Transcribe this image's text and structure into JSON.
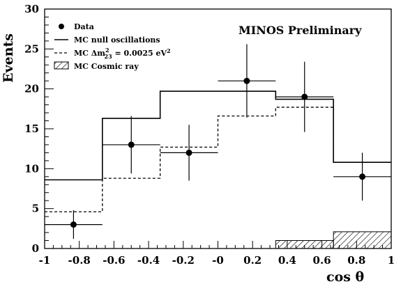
{
  "chart_data": {
    "type": "histogram",
    "title": "",
    "annotation": "MINOS Preliminary",
    "xlabel": "cos θ",
    "ylabel": "Events",
    "xlim": [
      -1,
      1
    ],
    "ylim": [
      0,
      30
    ],
    "x_ticks": [
      "-1",
      "-0.8",
      "-0.6",
      "-0.4",
      "-0.2",
      "-0",
      "0.2",
      "0.4",
      "0.6",
      "0.8",
      "1"
    ],
    "x_tick_values": [
      -1,
      -0.8,
      -0.6,
      -0.4,
      -0.2,
      0,
      0.2,
      0.4,
      0.6,
      0.8,
      1
    ],
    "y_ticks": [
      "0",
      "5",
      "10",
      "15",
      "20",
      "25",
      "30"
    ],
    "y_tick_values": [
      0,
      5,
      10,
      15,
      20,
      25,
      30
    ],
    "bin_edges": [
      -1,
      -0.6667,
      -0.3333,
      0,
      0.3333,
      0.6667,
      1
    ],
    "series": [
      {
        "name": "Data",
        "style": "points",
        "x": [
          -0.8333,
          -0.5,
          -0.1667,
          0.1667,
          0.5,
          0.8333
        ],
        "y": [
          3,
          13,
          12,
          21,
          19,
          9
        ],
        "yerr_low": [
          1.8,
          3.6,
          3.5,
          4.6,
          4.4,
          3.0
        ],
        "yerr_high": [
          1.8,
          3.6,
          3.5,
          4.6,
          4.4,
          3.0
        ]
      },
      {
        "name": "MC null oscillations",
        "style": "solid-step",
        "values": [
          8.6,
          16.3,
          19.7,
          19.7,
          18.7,
          10.8
        ]
      },
      {
        "name": "MC Δm²₂₃ = 0.0025 eV²",
        "style": "dashed-step",
        "values": [
          4.6,
          8.8,
          12.7,
          16.6,
          17.7,
          10.8
        ]
      },
      {
        "name": "MC Cosmic ray",
        "style": "hatched",
        "values": [
          0,
          0,
          0,
          0,
          1.0,
          2.1
        ]
      }
    ],
    "legend": {
      "placement": "top-left",
      "entries": [
        {
          "label_prefix": "Data",
          "label_sup": "",
          "label_sub": "",
          "label_mid": "",
          "label_tail": ""
        },
        {
          "label_prefix": "MC null oscillations",
          "label_sup": "",
          "label_sub": "",
          "label_mid": "",
          "label_tail": ""
        },
        {
          "label_prefix": "MC Δm",
          "label_sup": "2",
          "label_sub": "23",
          "label_mid": " = 0.0025 eV",
          "label_tail": "2"
        },
        {
          "label_prefix": "MC Cosmic ray",
          "label_sup": "",
          "label_sub": "",
          "label_mid": "",
          "label_tail": ""
        }
      ]
    },
    "grid": false,
    "colors": {
      "axis": "#000000",
      "line": "#000000",
      "background": "#ffffff"
    }
  }
}
